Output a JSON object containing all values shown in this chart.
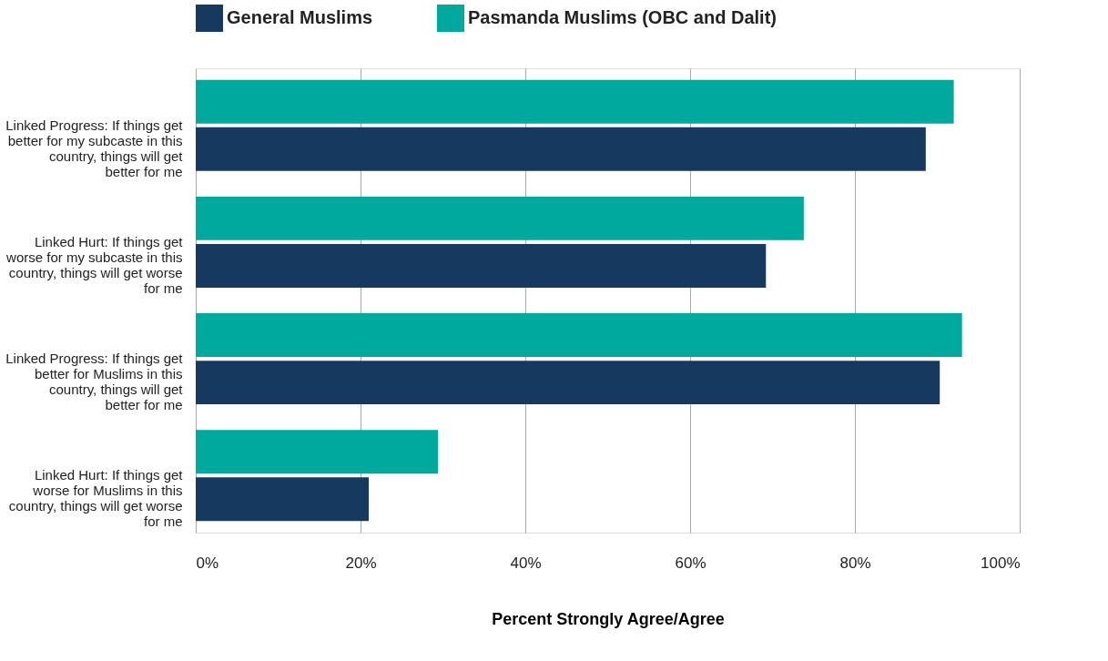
{
  "chart_data": {
    "type": "bar",
    "orientation": "horizontal",
    "xlabel": "Percent Strongly Agree/Agree",
    "categories": [
      "Linked Progress: If things get better for my subcaste in this country, things will get better for me",
      "Linked Hurt: If things get worse for my subcaste in this country, things will get worse for me",
      "Linked Progress: If things get better for Muslims in this country, things will get better for me",
      "Linked Hurt: If things get worse for Muslims in this country, things will get worse for me"
    ],
    "series": [
      {
        "name": "General Muslims",
        "color": "#163a5f",
        "values": [
          88.6,
          69.2,
          90.3,
          21.0
        ]
      },
      {
        "name": "Pasmanda Muslims (OBC and Dalit)",
        "color": "#00a99d",
        "values": [
          92.0,
          73.8,
          93.0,
          29.4
        ]
      }
    ],
    "xlim": [
      0,
      100
    ],
    "xticks": [
      {
        "value": 0,
        "label": "0%"
      },
      {
        "value": 20,
        "label": "20%"
      },
      {
        "value": 40,
        "label": "40%"
      },
      {
        "value": 60,
        "label": "60%"
      },
      {
        "value": 80,
        "label": "80%"
      },
      {
        "value": 100,
        "label": "100%"
      }
    ],
    "grid": "x",
    "legend": "top left"
  }
}
